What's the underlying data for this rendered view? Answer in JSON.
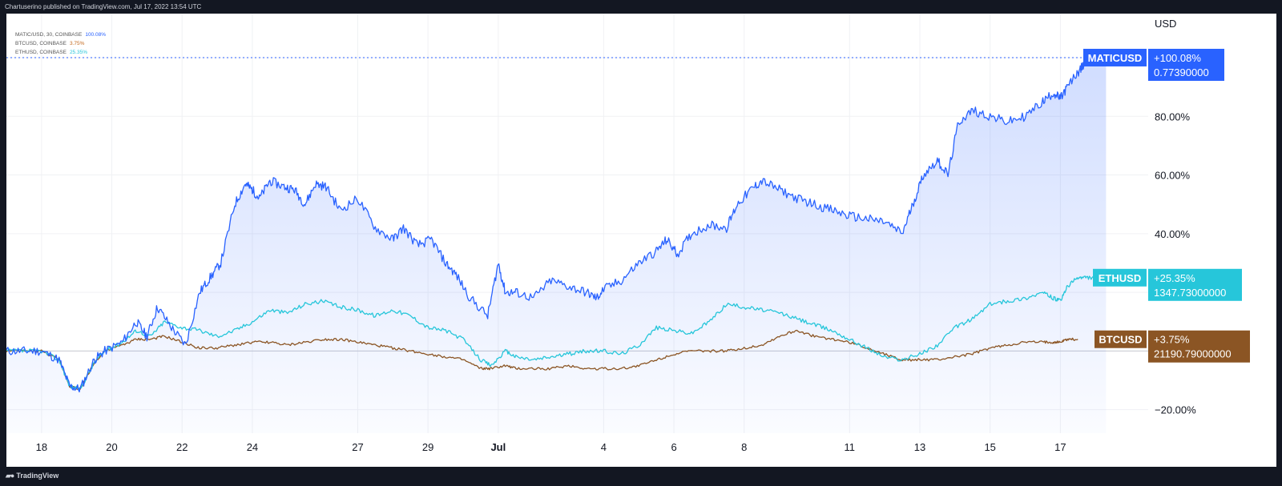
{
  "header": {
    "published_text": "Chartuserino published on TradingView.com, Jul 17, 2022 13:54 UTC"
  },
  "legend": [
    {
      "label": "MATIC/USD, 30, COINBASE",
      "value": "100.08%",
      "color": "#2962ff"
    },
    {
      "label": "BTCUSD, COINBASE",
      "value": "3.75%",
      "color": "#c46a1e"
    },
    {
      "label": "ETHUSD, COINBASE",
      "value": "25.35%",
      "color": "#26c6da"
    }
  ],
  "footer": {
    "brand": "TradingView",
    "logo": "tradingview-logo-icon"
  },
  "chart_data": {
    "type": "line",
    "y_unit_label": "USD",
    "y_ticks": [
      "80.00%",
      "60.00%",
      "40.00%",
      "−20.00%"
    ],
    "y_tick_values": [
      80,
      60,
      40,
      -20
    ],
    "ylim": [
      -28,
      115
    ],
    "x_tick_labels": [
      "18",
      "20",
      "22",
      "24",
      "27",
      "29",
      "Jul",
      "4",
      "6",
      "8",
      "11",
      "13",
      "15",
      "17"
    ],
    "x_tick_positions": [
      0.5,
      2.5,
      4.5,
      6.5,
      9.5,
      11.5,
      13.5,
      16.5,
      18.5,
      20.5,
      23.5,
      25.5,
      27.5,
      29.5
    ],
    "xlim": [
      -0.5,
      32
    ],
    "x_index_note": "x values are days since Jun 17, 2022",
    "grid": true,
    "series": [
      {
        "name": "MATICUSD",
        "color": "#2962ff",
        "fill": true,
        "tag_label": "MATICUSD",
        "tag_change": "+100.08%",
        "tag_price": "0.77390000",
        "x": [
          -0.5,
          0.0,
          0.5,
          1.0,
          1.3,
          1.6,
          2.0,
          2.3,
          2.8,
          3.2,
          3.5,
          3.8,
          4.2,
          4.6,
          5.0,
          5.3,
          5.6,
          6.0,
          6.3,
          6.5,
          6.7,
          7.0,
          7.4,
          7.7,
          8.0,
          8.3,
          8.6,
          9.0,
          9.5,
          10.0,
          10.5,
          10.8,
          11.2,
          11.6,
          12.0,
          12.3,
          12.7,
          13.2,
          13.5,
          13.7,
          14.0,
          14.5,
          15.0,
          15.5,
          16.0,
          16.3,
          16.5,
          17.0,
          17.5,
          18.0,
          18.3,
          18.6,
          19.0,
          19.5,
          20.0,
          20.3,
          20.7,
          21.0,
          21.5,
          22.0,
          22.5,
          23.0,
          23.5,
          24.0,
          24.5,
          25.0,
          25.3,
          25.6,
          26.0,
          26.3,
          26.6,
          27.0,
          27.5,
          28.0,
          28.5,
          29.0,
          29.3,
          29.5,
          29.7,
          30.0,
          30.2,
          30.5,
          30.8
        ],
        "y": [
          0,
          0,
          0,
          -3,
          -12,
          -13,
          -3,
          0,
          3,
          10,
          5,
          15,
          8,
          2,
          20,
          25,
          30,
          50,
          57,
          55,
          52,
          58,
          56,
          55,
          50,
          57,
          56,
          48,
          52,
          42,
          38,
          42,
          36,
          38,
          30,
          26,
          18,
          12,
          30,
          20,
          20,
          18,
          24,
          22,
          20,
          18,
          21,
          24,
          30,
          34,
          38,
          33,
          40,
          43,
          42,
          50,
          55,
          58,
          55,
          52,
          50,
          48,
          46,
          45,
          44,
          40,
          50,
          60,
          65,
          60,
          78,
          82,
          80,
          78,
          80,
          85,
          88,
          86,
          90,
          95,
          98,
          100,
          100
        ]
      },
      {
        "name": "ETHUSD",
        "color": "#26c6da",
        "tag_label": "ETHUSD",
        "tag_change": "+25.35%",
        "tag_price": "1347.73000000",
        "x": [
          -0.5,
          0.0,
          0.5,
          1.0,
          1.3,
          1.6,
          2.0,
          2.3,
          2.8,
          3.2,
          3.6,
          4.0,
          4.5,
          5.0,
          5.5,
          6.0,
          6.5,
          7.0,
          7.5,
          8.0,
          8.5,
          9.0,
          9.5,
          10.0,
          10.5,
          11.0,
          11.5,
          12.0,
          12.5,
          13.0,
          13.3,
          13.7,
          14.0,
          14.5,
          15.0,
          15.5,
          16.0,
          16.5,
          17.0,
          17.5,
          18.0,
          18.5,
          19.0,
          19.5,
          20.0,
          20.5,
          21.0,
          21.5,
          22.0,
          22.5,
          23.0,
          23.5,
          24.0,
          24.5,
          25.0,
          25.5,
          26.0,
          26.5,
          27.0,
          27.5,
          28.0,
          28.5,
          29.0,
          29.3,
          29.5,
          29.7,
          30.0,
          30.2,
          30.5,
          30.8
        ],
        "y": [
          0,
          0,
          0,
          -3,
          -12,
          -13,
          -4,
          0,
          3,
          7,
          5,
          10,
          8,
          7,
          5,
          7,
          10,
          14,
          13,
          16,
          17,
          15,
          14,
          12,
          14,
          12,
          8,
          7,
          4,
          -3,
          -5,
          0,
          -2,
          -3,
          -2,
          -1,
          0,
          0,
          -1,
          2,
          8,
          7,
          6,
          10,
          16,
          15,
          14,
          13,
          11,
          9,
          7,
          4,
          1,
          -2,
          -3,
          -1,
          2,
          8,
          11,
          16,
          17,
          18,
          20,
          18,
          17,
          22,
          25,
          25,
          25,
          25
        ]
      },
      {
        "name": "BTCUSD",
        "color": "#8b5524",
        "tag_label": "BTCUSD",
        "tag_change": "+3.75%",
        "tag_price": "21190.79000000",
        "x": [
          -0.5,
          0.0,
          0.5,
          1.0,
          1.3,
          1.6,
          2.0,
          2.3,
          2.8,
          3.2,
          3.6,
          4.0,
          4.5,
          5.0,
          5.5,
          6.0,
          6.5,
          7.0,
          7.5,
          8.0,
          8.5,
          9.0,
          9.5,
          10.0,
          10.5,
          11.0,
          11.5,
          12.0,
          12.5,
          13.0,
          13.3,
          13.7,
          14.0,
          14.5,
          15.0,
          15.5,
          16.0,
          16.5,
          17.0,
          17.5,
          18.0,
          18.5,
          19.0,
          19.5,
          20.0,
          20.5,
          21.0,
          21.5,
          22.0,
          22.5,
          23.0,
          23.5,
          24.0,
          24.5,
          25.0,
          25.5,
          26.0,
          26.5,
          27.0,
          27.5,
          28.0,
          28.5,
          29.0,
          29.3,
          29.5,
          29.7,
          30.0
        ],
        "y": [
          0,
          0,
          0,
          -3,
          -12,
          -13,
          -4,
          0,
          2,
          4,
          4,
          5,
          3,
          1,
          1,
          2,
          3,
          3,
          2,
          3,
          4,
          4,
          3,
          2,
          1,
          0,
          -1,
          -2,
          -3,
          -6,
          -6,
          -5,
          -6,
          -6,
          -6,
          -5,
          -6,
          -6,
          -6,
          -5,
          -3,
          -1,
          0,
          0,
          0,
          1,
          2,
          5,
          7,
          5,
          4,
          3,
          1,
          -1,
          -3,
          -3,
          -3,
          -2,
          -1,
          1,
          2,
          3,
          3,
          3,
          3,
          4,
          4
        ]
      }
    ]
  }
}
